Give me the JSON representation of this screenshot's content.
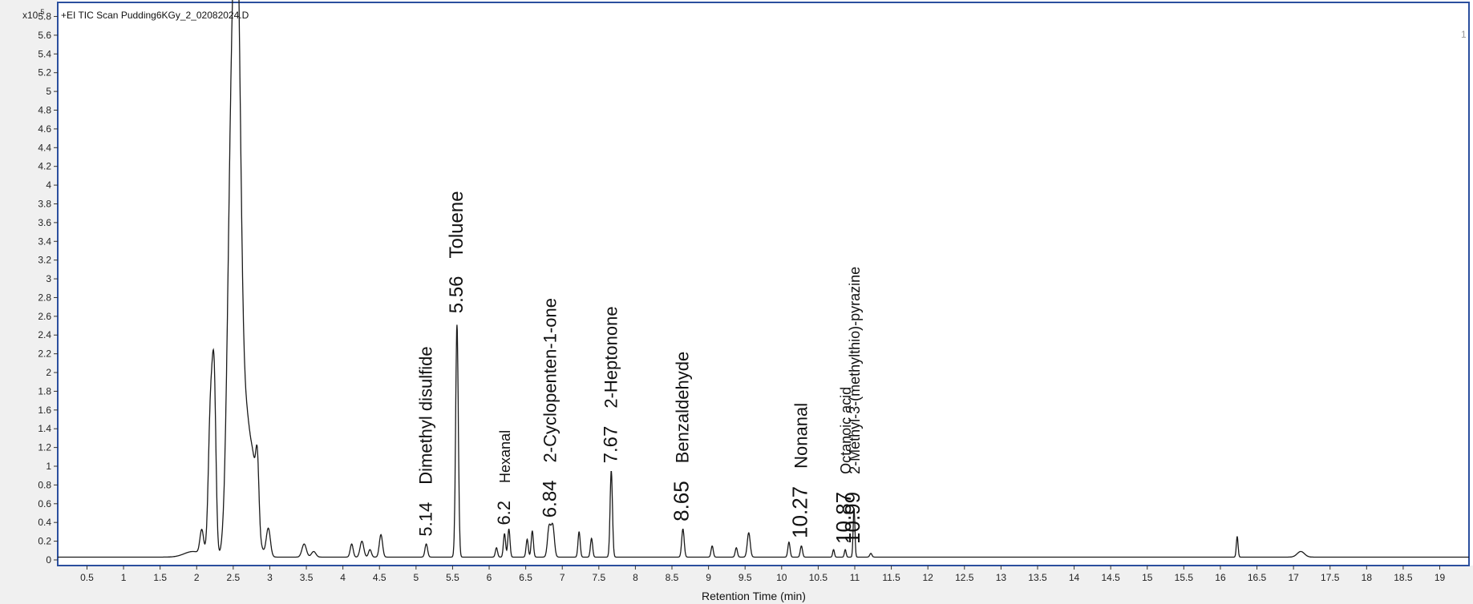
{
  "chart_data": {
    "type": "line",
    "title": "+EI TIC Scan Pudding6KGy_2_02082024.D",
    "xlabel": "Retention Time (min)",
    "ylabel": "",
    "y_scale_label": "x10",
    "y_scale_exp": "5",
    "corner_label": "1",
    "xlim": [
      0.1,
      19.4
    ],
    "ylim": [
      -0.06,
      5.95
    ],
    "grid": false,
    "legend": "none",
    "line_color": "#1a1a1a",
    "x_ticks": [
      "0.5",
      "1",
      "1.5",
      "2",
      "2.5",
      "3",
      "3.5",
      "4",
      "4.5",
      "5",
      "5.5",
      "6",
      "6.5",
      "7",
      "7.5",
      "8",
      "8.5",
      "9",
      "9.5",
      "10",
      "10.5",
      "11",
      "11.5",
      "12",
      "12.5",
      "13",
      "13.5",
      "14",
      "14.5",
      "15",
      "15.5",
      "16",
      "16.5",
      "17",
      "17.5",
      "18",
      "18.5",
      "19"
    ],
    "y_ticks": [
      "0",
      "0.2",
      "0.4",
      "0.6",
      "0.8",
      "1",
      "1.2",
      "1.4",
      "1.6",
      "1.8",
      "2",
      "2.2",
      "2.4",
      "2.6",
      "2.8",
      "3",
      "3.2",
      "3.4",
      "3.6",
      "3.8",
      "4",
      "4.2",
      "4.4",
      "4.6",
      "4.8",
      "5",
      "5.2",
      "5.4",
      "5.6",
      "5.8"
    ],
    "baseline": 0.03,
    "peaks": [
      [
        1.95,
        0.06,
        0.12
      ],
      [
        2.07,
        0.26,
        0.025
      ],
      [
        2.19,
        1.55,
        0.03
      ],
      [
        2.24,
        1.7,
        0.025
      ],
      [
        2.48,
        4.4,
        0.055
      ],
      [
        2.56,
        4.25,
        0.045
      ],
      [
        2.66,
        1.6,
        0.1
      ],
      [
        2.78,
        0.25,
        0.03
      ],
      [
        2.83,
        0.72,
        0.022
      ],
      [
        2.98,
        0.3,
        0.028
      ],
      [
        3.47,
        0.14,
        0.03
      ],
      [
        3.6,
        0.06,
        0.03
      ],
      [
        4.12,
        0.14,
        0.02
      ],
      [
        4.26,
        0.17,
        0.025
      ],
      [
        4.37,
        0.08,
        0.02
      ],
      [
        4.52,
        0.24,
        0.022
      ],
      [
        5.14,
        0.14,
        0.018
      ],
      [
        5.56,
        2.48,
        0.018
      ],
      [
        6.1,
        0.1,
        0.015
      ],
      [
        6.21,
        0.25,
        0.015
      ],
      [
        6.27,
        0.3,
        0.015
      ],
      [
        6.52,
        0.19,
        0.015
      ],
      [
        6.59,
        0.28,
        0.015
      ],
      [
        6.82,
        0.32,
        0.022
      ],
      [
        6.87,
        0.33,
        0.022
      ],
      [
        7.23,
        0.27,
        0.015
      ],
      [
        7.4,
        0.2,
        0.015
      ],
      [
        7.67,
        0.92,
        0.016
      ],
      [
        8.65,
        0.3,
        0.017
      ],
      [
        9.05,
        0.12,
        0.015
      ],
      [
        9.38,
        0.1,
        0.015
      ],
      [
        9.55,
        0.26,
        0.02
      ],
      [
        10.1,
        0.16,
        0.015
      ],
      [
        10.27,
        0.12,
        0.015
      ],
      [
        10.71,
        0.08,
        0.012
      ],
      [
        10.87,
        0.08,
        0.012
      ],
      [
        10.99,
        0.52,
        0.012
      ],
      [
        11.22,
        0.04,
        0.015
      ],
      [
        16.23,
        0.22,
        0.012
      ],
      [
        17.1,
        0.06,
        0.05
      ]
    ],
    "annotations": [
      {
        "x": 5.14,
        "y": 0.2,
        "rt": "5.14",
        "name": "Dimethyl disulfide",
        "rt_size": 22,
        "name_size": 22
      },
      {
        "x": 5.56,
        "y": 2.58,
        "rt": "5.56",
        "name": "Toluene",
        "rt_size": 24,
        "name_size": 24
      },
      {
        "x": 6.21,
        "y": 0.32,
        "rt": "6.2",
        "name": "Hexanal",
        "rt_size": 22,
        "name_size": 18
      },
      {
        "x": 6.84,
        "y": 0.4,
        "rt": "6.84",
        "name": "2-Cyclopenten-1-one",
        "rt_size": 24,
        "name_size": 22
      },
      {
        "x": 7.67,
        "y": 0.98,
        "rt": "7.67",
        "name": "2-Heptonone",
        "rt_size": 24,
        "name_size": 22
      },
      {
        "x": 8.65,
        "y": 0.36,
        "rt": "8.65",
        "name": "Benzaldehyde",
        "rt_size": 26,
        "name_size": 22
      },
      {
        "x": 10.27,
        "y": 0.18,
        "rt": "10.27",
        "name": "Nonanal",
        "rt_size": 26,
        "name_size": 22
      },
      {
        "x": 10.87,
        "y": 0.12,
        "rt": "10.87",
        "name": "Octanoic acid",
        "rt_size": 26,
        "name_size": 18
      },
      {
        "x": 10.99,
        "y": 0.12,
        "rt": "10.99",
        "name": "2-Methyl-3-(methylthio)-pyrazine",
        "rt_size": 26,
        "name_size": 18
      }
    ]
  }
}
